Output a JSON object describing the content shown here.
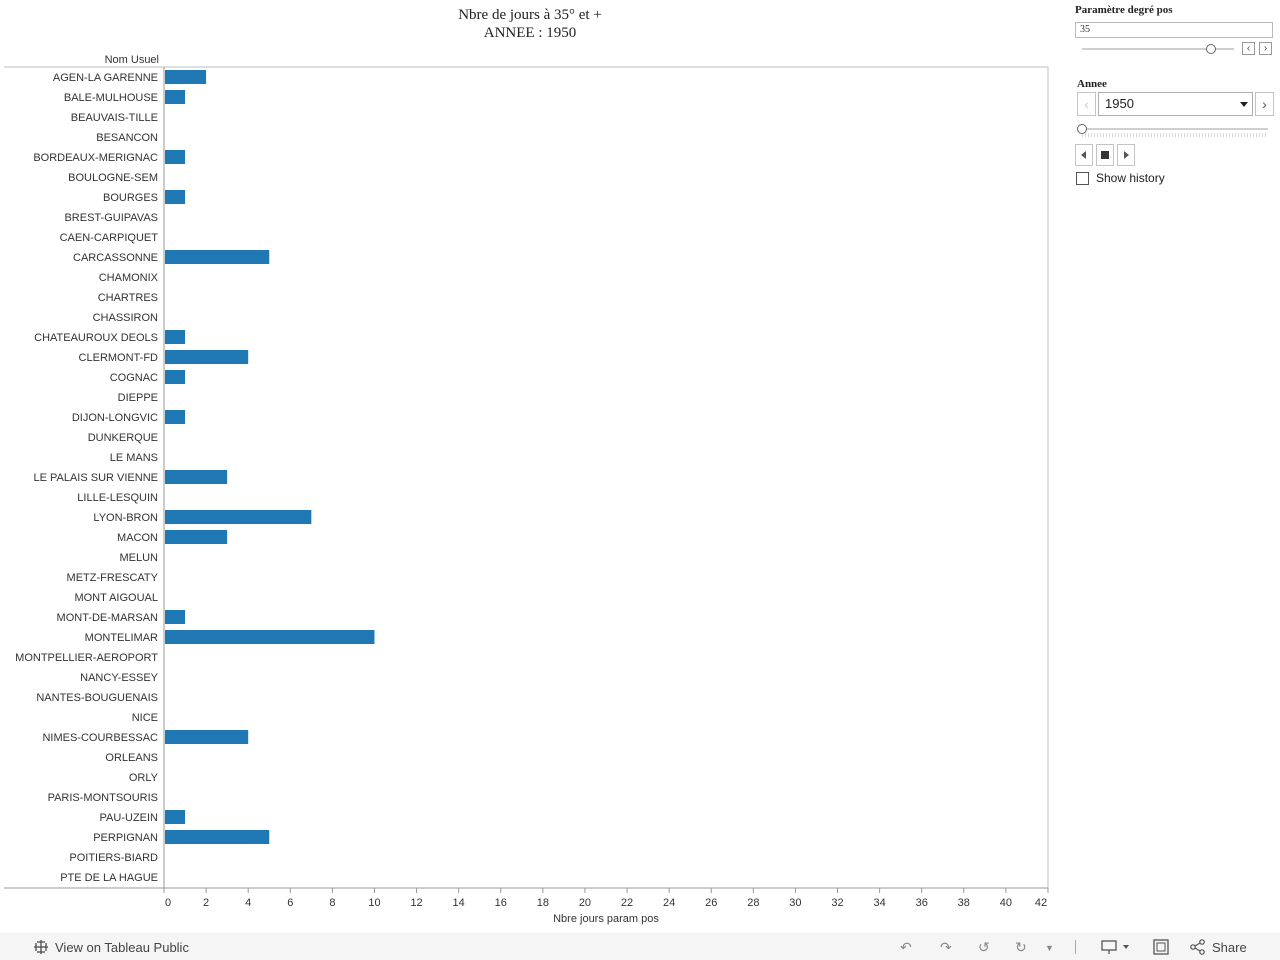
{
  "chart_data": {
    "type": "bar",
    "orientation": "horizontal",
    "title_line1": "Nbre de jours à  35° et +",
    "title_line2": "ANNEE : 1950",
    "row_header": "Nom Usuel",
    "xlabel": "Nbre jours param pos",
    "xlim": [
      0,
      42
    ],
    "xticks": [
      0,
      2,
      4,
      6,
      8,
      10,
      12,
      14,
      16,
      18,
      20,
      22,
      24,
      26,
      28,
      30,
      32,
      34,
      36,
      38,
      40,
      42
    ],
    "bar_color": "#1f77b4",
    "categories": [
      "AGEN-LA GARENNE",
      "BALE-MULHOUSE",
      "BEAUVAIS-TILLE",
      "BESANCON",
      "BORDEAUX-MERIGNAC",
      "BOULOGNE-SEM",
      "BOURGES",
      "BREST-GUIPAVAS",
      "CAEN-CARPIQUET",
      "CARCASSONNE",
      "CHAMONIX",
      "CHARTRES",
      "CHASSIRON",
      "CHATEAUROUX  DEOLS",
      "CLERMONT-FD",
      "COGNAC",
      "DIEPPE",
      "DIJON-LONGVIC",
      "DUNKERQUE",
      "LE MANS",
      "LE PALAIS SUR VIENNE",
      "LILLE-LESQUIN",
      "LYON-BRON",
      "MACON",
      "MELUN",
      "METZ-FRESCATY",
      "MONT AIGOUAL",
      "MONT-DE-MARSAN",
      "MONTELIMAR",
      "MONTPELLIER-AEROPORT",
      "NANCY-ESSEY",
      "NANTES-BOUGUENAIS",
      "NICE",
      "NIMES-COURBESSAC",
      "ORLEANS",
      "ORLY",
      "PARIS-MONTSOURIS",
      "PAU-UZEIN",
      "PERPIGNAN",
      "POITIERS-BIARD",
      "PTE DE LA HAGUE"
    ],
    "values": [
      2,
      1,
      0,
      0,
      1,
      0,
      1,
      0,
      0,
      5,
      0,
      0,
      0,
      1,
      4,
      1,
      0,
      1,
      0,
      0,
      3,
      0,
      7,
      3,
      0,
      0,
      0,
      1,
      10,
      0,
      0,
      0,
      0,
      4,
      0,
      0,
      0,
      1,
      5,
      0,
      0
    ]
  },
  "controls": {
    "param_title": "Paramètre degré pos",
    "param_value": "35",
    "param_fraction": 0.85,
    "year_title": "Annee",
    "year_value": "1950",
    "year_fraction": 0.0,
    "show_history_label": "Show history",
    "show_history_checked": false
  },
  "footer": {
    "view_label": "View on Tableau Public",
    "share_label": "Share"
  }
}
